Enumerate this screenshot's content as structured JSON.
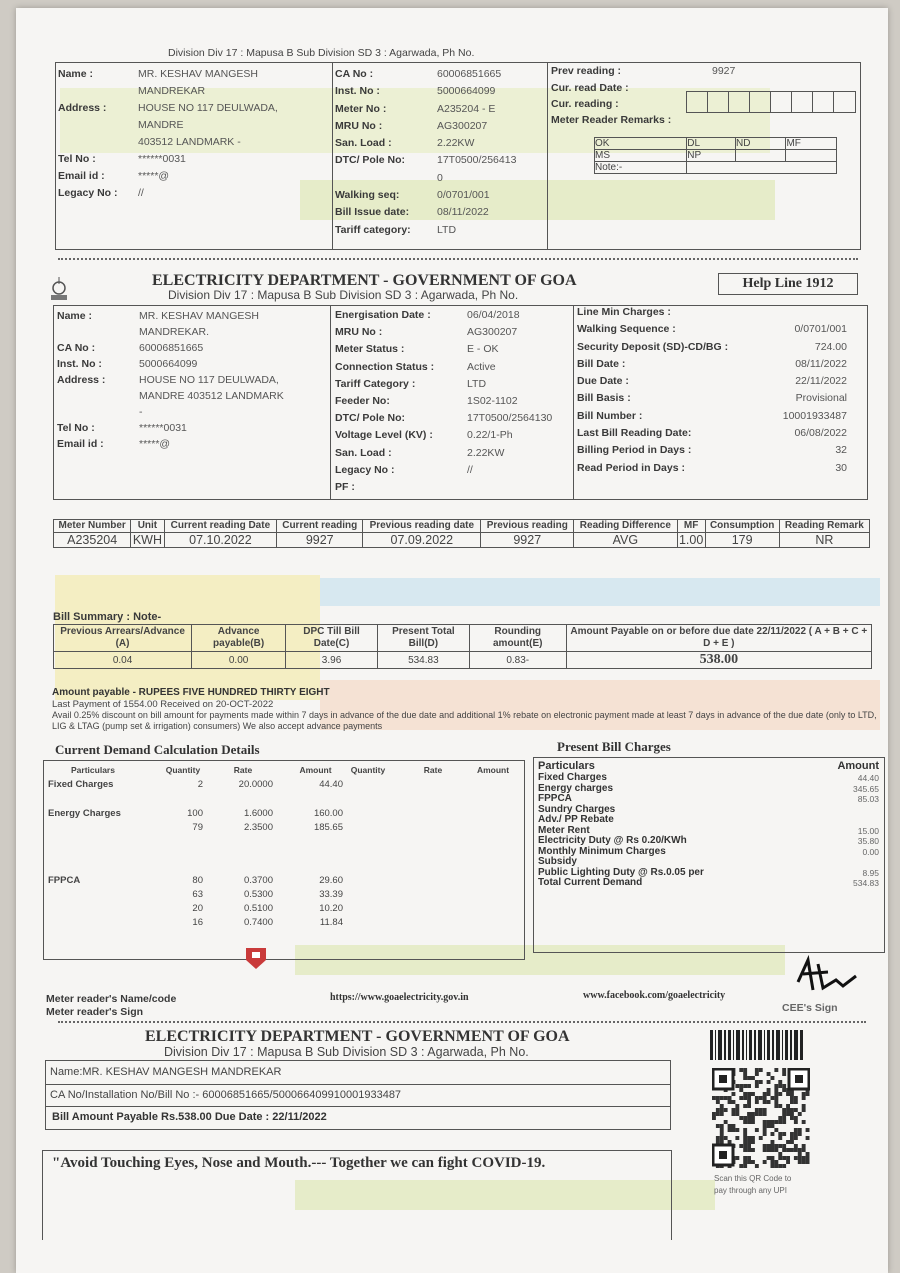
{
  "division_line": "Division Div 17 : Mapusa B Sub Division SD 3 : Agarwada, Ph No.",
  "top_stub": {
    "col1": [
      [
        "Name :",
        "MR. KESHAV MANGESH\nMANDREKAR"
      ],
      [
        "Address :",
        "HOUSE NO 117 DEULWADA,\nMANDRE\n403512 LANDMARK -"
      ],
      [
        "Tel No :",
        "******0031"
      ],
      [
        "Email id :",
        "*****@"
      ],
      [
        "Legacy No :",
        "//"
      ]
    ],
    "col2": [
      [
        "CA No :",
        "60006851665"
      ],
      [
        "Inst. No :",
        "5000664099"
      ],
      [
        "Meter No :",
        "A235204 - E"
      ],
      [
        "MRU No :",
        "AG300207"
      ],
      [
        "San. Load :",
        "2.22KW"
      ],
      [
        "DTC/ Pole No:",
        "17T0500/256413\n0"
      ],
      [
        "Walking seq:",
        "0/0701/001"
      ],
      [
        "Bill Issue date:",
        "08/11/2022"
      ],
      [
        "Tariff category:",
        "LTD"
      ]
    ],
    "prev_reading_label": "Prev reading :",
    "prev_reading": "9927",
    "cur_read_date_label": "Cur. read Date :",
    "cur_reading_label": "Cur. reading :",
    "remarks_label": "Meter Reader Remarks :",
    "remark_codes": [
      "OK",
      "DL",
      "ND",
      "MF",
      "MS",
      "NP"
    ],
    "note_label": "Note:-"
  },
  "department": "ELECTRICITY DEPARTMENT - GOVERNMENT OF GOA",
  "helpline": "Help Line  1912",
  "main": {
    "col1": [
      [
        "Name :",
        "MR. KESHAV MANGESH\nMANDREKAR."
      ],
      [
        "CA No :",
        "60006851665"
      ],
      [
        "Inst. No :",
        "5000664099"
      ],
      [
        "Address :",
        "HOUSE NO 117 DEULWADA,\nMANDRE 403512 LANDMARK\n-"
      ],
      [
        "Tel No :",
        "******0031"
      ],
      [
        "Email id :",
        "*****@"
      ]
    ],
    "col2": [
      [
        "Energisation Date :",
        "06/04/2018"
      ],
      [
        "MRU No :",
        "AG300207"
      ],
      [
        "Meter Status :",
        "E - OK"
      ],
      [
        "Connection Status :",
        "Active"
      ],
      [
        "Tariff Category :",
        "LTD"
      ],
      [
        "Feeder No:",
        "1S02-1102"
      ],
      [
        "DTC/ Pole No:",
        "17T0500/2564130"
      ],
      [
        "Voltage Level (KV) :",
        "0.22/1-Ph"
      ],
      [
        "San. Load :",
        "2.22KW"
      ],
      [
        "Legacy No :",
        "//"
      ],
      [
        "PF :",
        ""
      ]
    ],
    "col3": [
      [
        "Line Min Charges :",
        ""
      ],
      [
        "Walking Sequence :",
        "0/0701/001"
      ],
      [
        "Security Deposit (SD)-CD/BG :",
        "724.00"
      ],
      [
        "Bill Date :",
        "08/11/2022"
      ],
      [
        "Due Date :",
        "22/11/2022"
      ],
      [
        "Bill Basis :",
        "Provisional"
      ],
      [
        "Bill Number :",
        "10001933487"
      ],
      [
        "Last Bill Reading Date:",
        "06/08/2022"
      ],
      [
        "Billing Period in Days :",
        "32"
      ],
      [
        "Read Period in Days :",
        "30"
      ]
    ]
  },
  "meter_table": {
    "headers": [
      "Meter Number",
      "Unit",
      "Current reading Date",
      "Current reading",
      "Previous reading date",
      "Previous reading",
      "Reading Difference",
      "MF",
      "Consumption",
      "Reading Remark"
    ],
    "row": [
      "A235204",
      "KWH",
      "07.10.2022",
      "9927",
      "07.09.2022",
      "9927",
      "AVG",
      "1.00",
      "179",
      "NR"
    ]
  },
  "bill_summary": {
    "title": "Bill Summary : Note-",
    "headers": [
      "Previous Arrears/Advance (A)",
      "Advance payable(B)",
      "DPC Till Bill Date(C)",
      "Present Total Bill(D)",
      "Rounding amount(E)",
      "Amount Payable on or before due date 22/11/2022  ( A + B + C + D + E )"
    ],
    "row": [
      "0.04",
      "0.00",
      "3.96",
      "534.83",
      "0.83-",
      "538.00"
    ]
  },
  "notes": {
    "amount_words": "Amount payable  - RUPEES  FIVE HUNDRED THIRTY EIGHT",
    "last_payment": "Last Payment of  1554.00  Received on 20-OCT-2022",
    "discount": "Avail 0.25% discount on bill amount  for payments made within 7 days in advance of the due date and additional 1% rebate on electronic payment made at least 7 days in advance of the due date (only to LTD, LIG & LTAG (pump set & irrigation) consumers) We also accept advance payments"
  },
  "demand": {
    "title": "Current Demand Calculation Details",
    "headers": [
      "Particulars",
      "Quantity",
      "Rate",
      "Amount",
      "Quantity",
      "Rate",
      "Amount"
    ],
    "rows": [
      [
        "Fixed Charges",
        "2",
        "20.0000",
        "44.40"
      ],
      [
        "Energy Charges",
        "100",
        "1.6000",
        "160.00"
      ],
      [
        "",
        "79",
        "2.3500",
        "185.65"
      ],
      [
        "FPPCA",
        "80",
        "0.3700",
        "29.60"
      ],
      [
        "",
        "63",
        "0.5300",
        "33.39"
      ],
      [
        "",
        "20",
        "0.5100",
        "10.20"
      ],
      [
        "",
        "16",
        "0.7400",
        "11.84"
      ]
    ]
  },
  "present": {
    "title": "Present Bill Charges",
    "header": [
      "Particulars",
      "Amount"
    ],
    "rows": [
      [
        "Fixed Charges",
        "44.40"
      ],
      [
        "Energy charges",
        "345.65"
      ],
      [
        "FPPCA",
        "85.03"
      ],
      [
        "Sundry Charges",
        ""
      ],
      [
        "Adv./ PP Rebate",
        ""
      ],
      [
        "Meter Rent",
        "15.00"
      ],
      [
        "Electricity Duty @ Rs 0.20/KWh",
        "35.80"
      ],
      [
        "Monthly Minimum Charges",
        "0.00"
      ],
      [
        "Subsidy",
        ""
      ],
      [
        "Public Lighting Duty @ Rs.0.05 per",
        "8.95"
      ],
      [
        "Total Current Demand",
        "534.83"
      ]
    ]
  },
  "footer": {
    "reader_name": "Meter reader's Name/code",
    "reader_sign": "Meter reader's Sign",
    "website": "https://www.goaelectricity.gov.in",
    "facebook": "www.facebook.com/goaelectricity",
    "cee_sign": "CEE's Sign"
  },
  "slip": {
    "name": "Name:MR. KESHAV MANGESH MANDREKAR",
    "ids": "CA No/Installation No/Bill No :- 60006851665/500066409910001933487",
    "amount": "Bill Amount Payable Rs.538.00 Due Date : 22/11/2022",
    "covid": "\"Avoid Touching Eyes, Nose and Mouth.--- Together we can fight COVID-19.",
    "qr_note": "Scan this QR Code to pay through any UPI"
  }
}
